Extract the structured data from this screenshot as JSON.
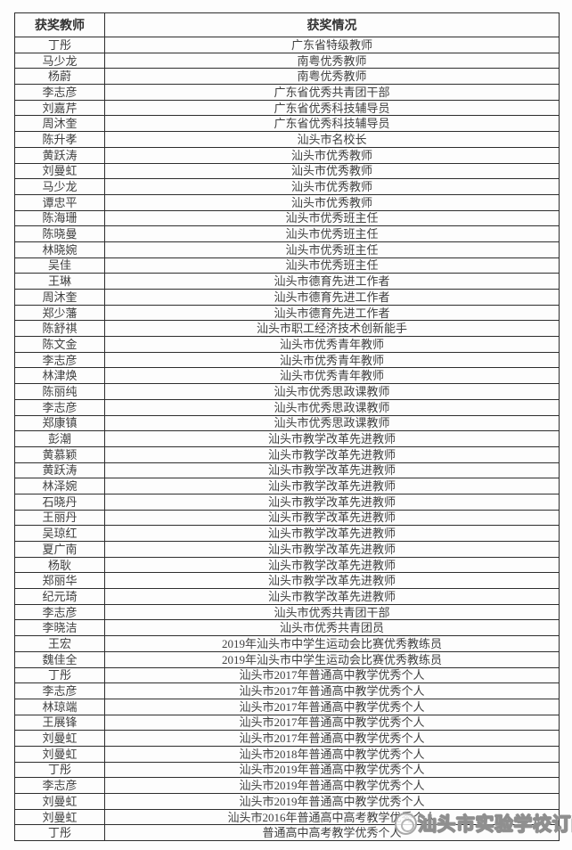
{
  "table": {
    "headers": [
      "获奖教师",
      "获奖情况"
    ],
    "rows": [
      [
        "丁彤",
        "广东省特级教师"
      ],
      [
        "马少龙",
        "南粤优秀教师"
      ],
      [
        "杨蔚",
        "南粤优秀教师"
      ],
      [
        "李志彦",
        "广东省优秀共青团干部"
      ],
      [
        "刘嘉芹",
        "广东省优秀科技辅导员"
      ],
      [
        "周沐奎",
        "广东省优秀科技辅导员"
      ],
      [
        "陈升孝",
        "汕头市名校长"
      ],
      [
        "黄跃涛",
        "汕头市优秀教师"
      ],
      [
        "刘曼虹",
        "汕头市优秀教师"
      ],
      [
        "马少龙",
        "汕头市优秀教师"
      ],
      [
        "谭忠平",
        "汕头市优秀教师"
      ],
      [
        "陈海珊",
        "汕头市优秀班主任"
      ],
      [
        "陈晓曼",
        "汕头市优秀班主任"
      ],
      [
        "林晓婉",
        "汕头市优秀班主任"
      ],
      [
        "吴佳",
        "汕头市优秀班主任"
      ],
      [
        "王琳",
        "汕头市德育先进工作者"
      ],
      [
        "周沐奎",
        "汕头市德育先进工作者"
      ],
      [
        "郑少藩",
        "汕头市德育先进工作者"
      ],
      [
        "陈舒祺",
        "汕头市职工经济技术创新能手"
      ],
      [
        "陈文金",
        "汕头市优秀青年教师"
      ],
      [
        "李志彦",
        "汕头市优秀青年教师"
      ],
      [
        "林津焕",
        "汕头市优秀青年教师"
      ],
      [
        "陈丽纯",
        "汕头市优秀思政课教师"
      ],
      [
        "李志彦",
        "汕头市优秀思政课教师"
      ],
      [
        "郑康镇",
        "汕头市优秀思政课教师"
      ],
      [
        "彭潮",
        "汕头市教学改革先进教师"
      ],
      [
        "黄慕颖",
        "汕头市教学改革先进教师"
      ],
      [
        "黄跃涛",
        "汕头市教学改革先进教师"
      ],
      [
        "林泽婉",
        "汕头市教学改革先进教师"
      ],
      [
        "石晓丹",
        "汕头市教学改革先进教师"
      ],
      [
        "王丽丹",
        "汕头市教学改革先进教师"
      ],
      [
        "吴琼红",
        "汕头市教学改革先进教师"
      ],
      [
        "夏广南",
        "汕头市教学改革先进教师"
      ],
      [
        "杨耿",
        "汕头市教学改革先进教师"
      ],
      [
        "郑丽华",
        "汕头市教学改革先进教师"
      ],
      [
        "纪元琦",
        "汕头市教学改革先进教师"
      ],
      [
        "李志彦",
        "汕头市优秀共青团干部"
      ],
      [
        "李晓洁",
        "汕头市优秀共青团员"
      ],
      [
        "王宏",
        "2019年汕头市中学生运动会比赛优秀教练员"
      ],
      [
        "魏佳全",
        "2019年汕头市中学生运动会比赛优秀教练员"
      ],
      [
        "丁彤",
        "汕头市2017年普通高中教学优秀个人"
      ],
      [
        "李志彦",
        "汕头市2017年普通高中教学优秀个人"
      ],
      [
        "林琼端",
        "汕头市2017年普通高中教学优秀个人"
      ],
      [
        "王展锋",
        "汕头市2017年普通高中教学优秀个人"
      ],
      [
        "刘曼虹",
        "汕头市2017年普通高中教学优秀个人"
      ],
      [
        "刘曼虹",
        "汕头市2018年普通高中教学优秀个人"
      ],
      [
        "丁彤",
        "汕头市2019年普通高中教学优秀个人"
      ],
      [
        "李志彦",
        "汕头市2019年普通高中教学优秀个人"
      ],
      [
        "刘曼虹",
        "汕头市2019年普通高中教学优秀个人"
      ],
      [
        "刘曼虹",
        "汕头市2016年普通高中高考教学优秀个人"
      ],
      [
        "丁彤",
        "普通高中高考教学优秀个人"
      ]
    ]
  },
  "watermark": {
    "text": "汕头市实验学校订阅号",
    "icon": "circle-logo-icon"
  },
  "colors": {
    "text": "#3f3f3f",
    "border": "#2d2d2d",
    "background": "#fdfdfd",
    "watermark_fill": "#ffffff",
    "watermark_outline": "#9a9a9a"
  }
}
